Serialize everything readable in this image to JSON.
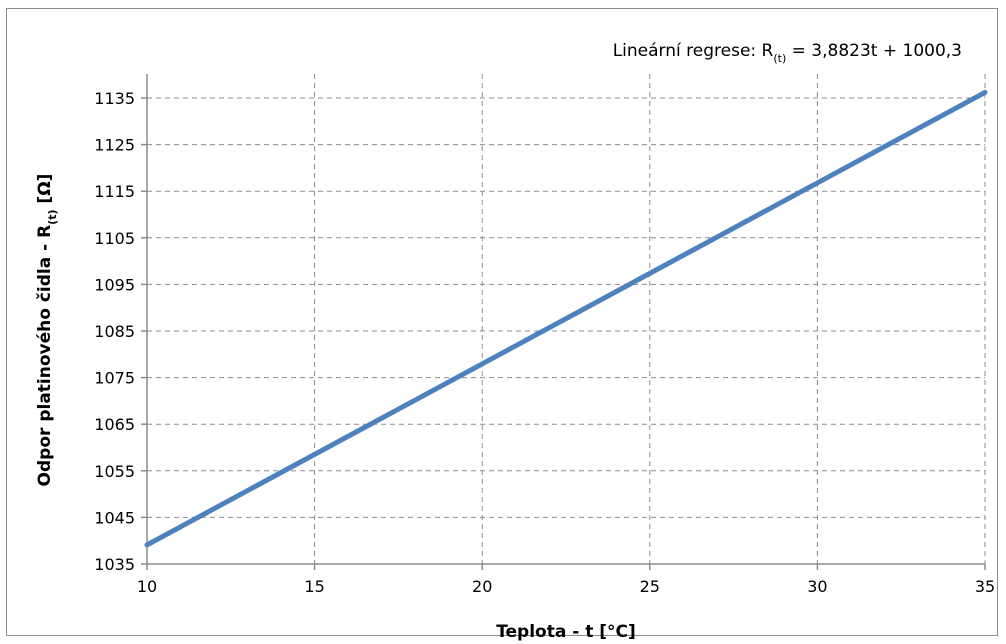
{
  "chart_data": {
    "type": "line",
    "annotation": {
      "prefix": "Lineární regrese: R",
      "subscript": "(t)",
      "suffix": " = 3,8823t + 1000,3"
    },
    "xlabel": "Teplota - t [°C]",
    "ylabel": {
      "prefix": "Odpor platinového čidla - R",
      "subscript": "(t)",
      "suffix": " [Ω]"
    },
    "xlim": [
      10,
      35
    ],
    "ylim": [
      1035,
      1140
    ],
    "xticks": [
      10,
      15,
      20,
      25,
      30,
      35
    ],
    "yticks": [
      1035,
      1045,
      1055,
      1065,
      1075,
      1085,
      1095,
      1105,
      1115,
      1125,
      1135
    ],
    "grid": true,
    "gridStyle": "dashed",
    "series": [
      {
        "color": "#4f81bd",
        "x": [
          10,
          35
        ],
        "y": [
          1039.1,
          1136.2
        ]
      }
    ]
  }
}
